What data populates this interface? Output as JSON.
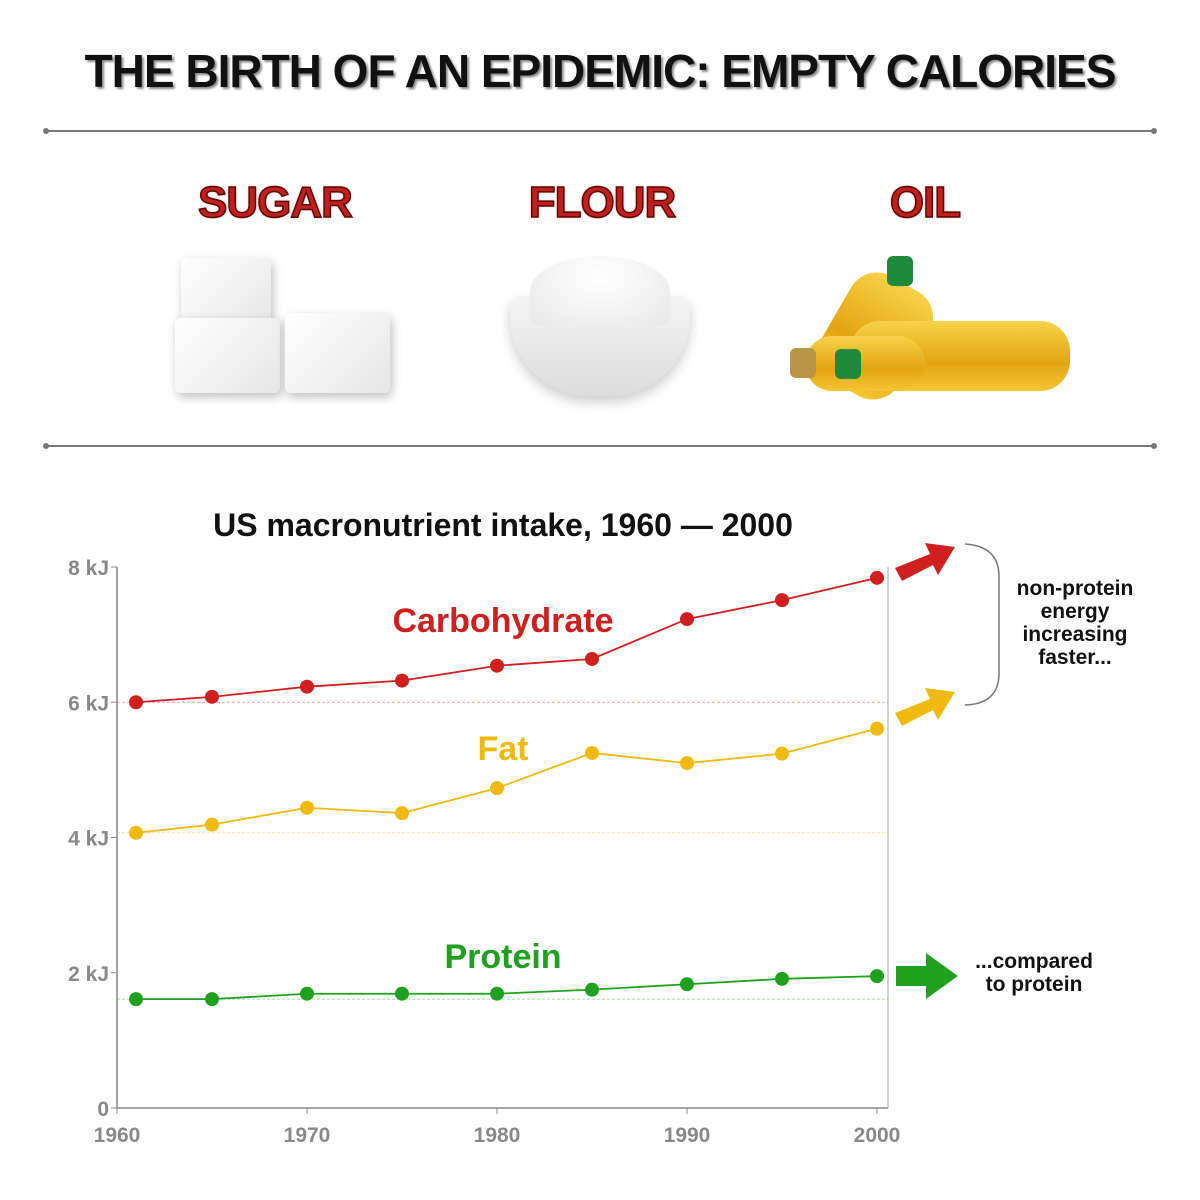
{
  "header": {
    "title": "THE BIRTH OF AN EPIDEMIC:  EMPTY CALORIES"
  },
  "foods": [
    {
      "label": "SUGAR",
      "icon": "sugar-cubes-image"
    },
    {
      "label": "FLOUR",
      "icon": "flour-bowl-image"
    },
    {
      "label": "OIL",
      "icon": "oil-bottles-image"
    }
  ],
  "annotations": {
    "nonprotein": [
      "non-protein",
      "energy",
      "increasing",
      "faster..."
    ],
    "protein": [
      "...compared",
      "to protein"
    ]
  },
  "chart_data": {
    "type": "line",
    "title": "US macronutrient intake, 1960 — 2000",
    "xlabel": "",
    "ylabel": "",
    "xlim": [
      1960,
      2001
    ],
    "ylim": [
      0,
      8
    ],
    "xticks": [
      1960,
      1970,
      1980,
      1990,
      2000
    ],
    "yticks": [
      {
        "v": 0,
        "label": "0"
      },
      {
        "v": 2,
        "label": "2 kJ"
      },
      {
        "v": 4,
        "label": "4 kJ"
      },
      {
        "v": 6,
        "label": "6 kJ"
      },
      {
        "v": 8,
        "label": "8 kJ"
      }
    ],
    "grid": false,
    "x": [
      1961,
      1965,
      1970,
      1975,
      1980,
      1985,
      1990,
      1995,
      2000
    ],
    "series": [
      {
        "name": "Carbohydrate",
        "color": "#d01f1f",
        "values": [
          6.0,
          6.08,
          6.23,
          6.32,
          6.54,
          6.64,
          7.23,
          7.51,
          7.84
        ],
        "baseline": 6.0
      },
      {
        "name": "Fat",
        "color": "#efb90e",
        "values": [
          4.07,
          4.19,
          4.44,
          4.36,
          4.73,
          5.25,
          5.1,
          5.24,
          5.61
        ],
        "baseline": 4.07
      },
      {
        "name": "Protein",
        "color": "#1fa11f",
        "values": [
          1.61,
          1.61,
          1.69,
          1.69,
          1.69,
          1.75,
          1.83,
          1.91,
          1.95
        ],
        "baseline": 1.61
      }
    ]
  }
}
